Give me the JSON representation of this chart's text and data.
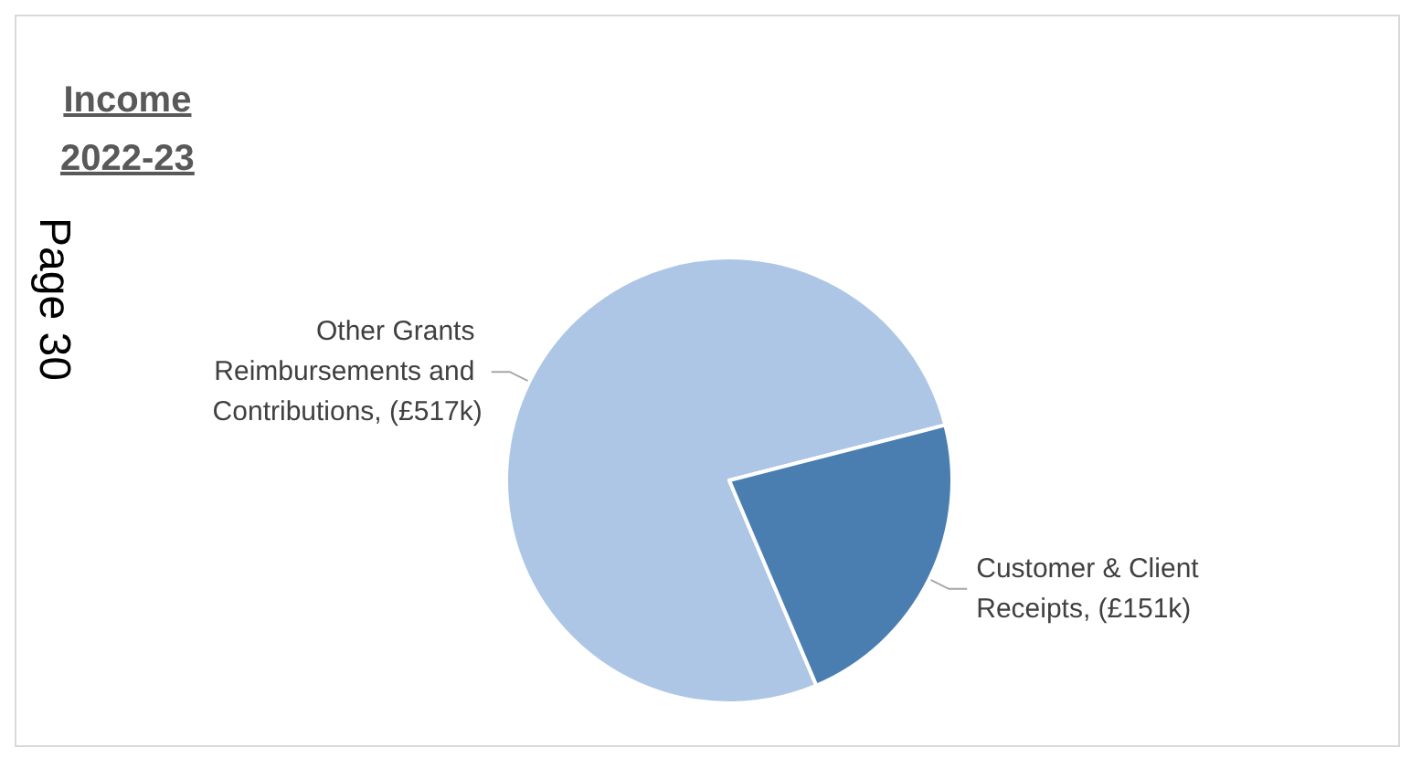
{
  "chart_data": {
    "type": "pie",
    "title": "Income\n2022-23",
    "annotations": [
      "Page 30"
    ],
    "categories": [
      "Other Grants Reimbursements and Contributions",
      "Customer & Client Receipts"
    ],
    "values": [
      517,
      151
    ],
    "value_labels": [
      "(£517k)",
      "(£151k)"
    ],
    "colors": [
      "#adc6e5",
      "#4a7eb0"
    ],
    "legend": false
  }
}
